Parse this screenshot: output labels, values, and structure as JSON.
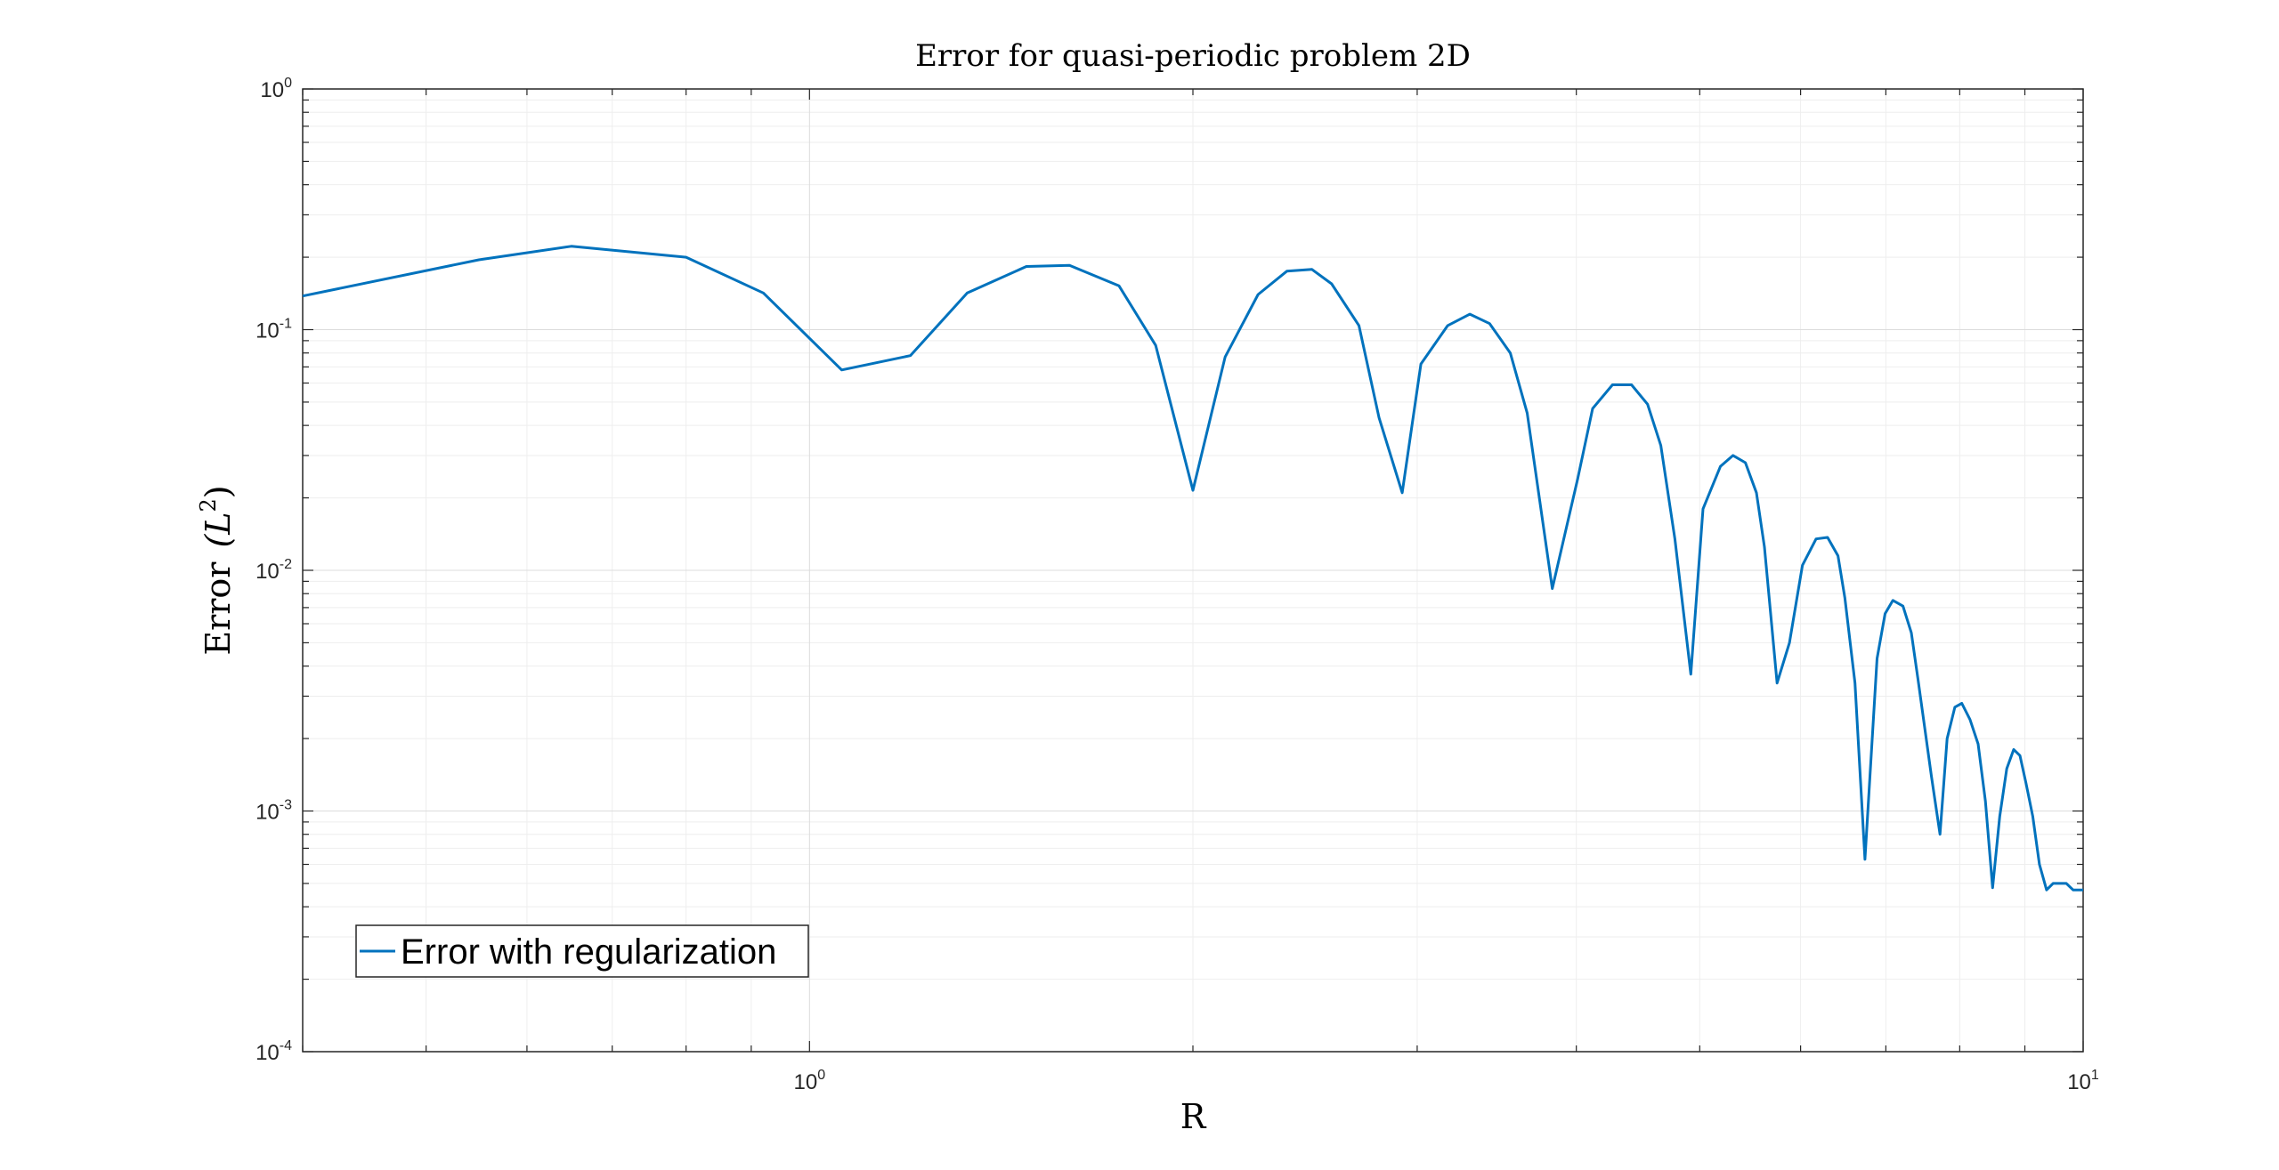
{
  "chart_data": {
    "type": "line",
    "title": "Error for quasi-periodic problem 2D",
    "xlabel": "R",
    "ylabel": "Error",
    "ylabel_math": "(L",
    "ylabel_sup": "2",
    "ylabel_close": ")",
    "xscale": "log",
    "yscale": "log",
    "xlim": [
      0.4,
      10
    ],
    "ylim": [
      0.0001,
      1
    ],
    "grid": true,
    "legend_position": "bottom-left",
    "x_ticks": [
      {
        "value": 1,
        "base": "10",
        "exp": "0"
      },
      {
        "value": 10,
        "base": "10",
        "exp": "1"
      }
    ],
    "y_ticks": [
      {
        "value": 1,
        "base": "10",
        "exp": "0"
      },
      {
        "value": 0.1,
        "base": "10",
        "exp": "-1"
      },
      {
        "value": 0.01,
        "base": "10",
        "exp": "-2"
      },
      {
        "value": 0.001,
        "base": "10",
        "exp": "-3"
      },
      {
        "value": 0.0001,
        "base": "10",
        "exp": "-4"
      }
    ],
    "series": [
      {
        "name": "Error with regularization",
        "color": "#0072BD",
        "x": [
          0.4,
          0.55,
          0.65,
          0.8,
          0.92,
          1.06,
          1.2,
          1.33,
          1.48,
          1.6,
          1.75,
          1.87,
          2.0,
          2.12,
          2.25,
          2.37,
          2.48,
          2.57,
          2.7,
          2.8,
          2.92,
          3.02,
          3.17,
          3.3,
          3.42,
          3.55,
          3.66,
          3.83,
          4.01,
          4.12,
          4.27,
          4.42,
          4.55,
          4.66,
          4.78,
          4.92,
          5.03,
          5.19,
          5.31,
          5.43,
          5.54,
          5.62,
          5.75,
          5.88,
          6.02,
          6.17,
          6.3,
          6.42,
          6.5,
          6.62,
          6.74,
          6.89,
          6.99,
          7.09,
          7.22,
          7.33,
          7.42,
          7.6,
          7.72,
          7.82,
          7.93,
          8.03,
          8.15,
          8.27,
          8.38,
          8.49,
          8.6,
          8.71,
          8.82,
          8.92,
          9.02,
          9.13,
          9.24,
          9.36,
          9.47,
          9.58,
          9.7,
          9.82,
          10.0
        ],
        "y": [
          0.138,
          0.195,
          0.222,
          0.2,
          0.142,
          0.068,
          0.078,
          0.142,
          0.183,
          0.185,
          0.152,
          0.086,
          0.0215,
          0.077,
          0.14,
          0.175,
          0.178,
          0.155,
          0.104,
          0.043,
          0.021,
          0.072,
          0.104,
          0.116,
          0.106,
          0.08,
          0.045,
          0.0084,
          0.024,
          0.047,
          0.059,
          0.059,
          0.049,
          0.033,
          0.0135,
          0.0037,
          0.018,
          0.027,
          0.03,
          0.028,
          0.021,
          0.0125,
          0.0034,
          0.005,
          0.0105,
          0.0135,
          0.0137,
          0.0115,
          0.0077,
          0.0034,
          0.00063,
          0.0043,
          0.0066,
          0.0075,
          0.0071,
          0.0055,
          0.0035,
          0.0014,
          0.0008,
          0.002,
          0.0027,
          0.0028,
          0.0024,
          0.0019,
          0.0011,
          0.00048,
          0.00095,
          0.0015,
          0.0018,
          0.0017,
          0.0013,
          0.00095,
          0.0006,
          0.00047,
          0.0005,
          0.0005,
          0.0005,
          0.00047,
          0.00047
        ]
      }
    ]
  }
}
